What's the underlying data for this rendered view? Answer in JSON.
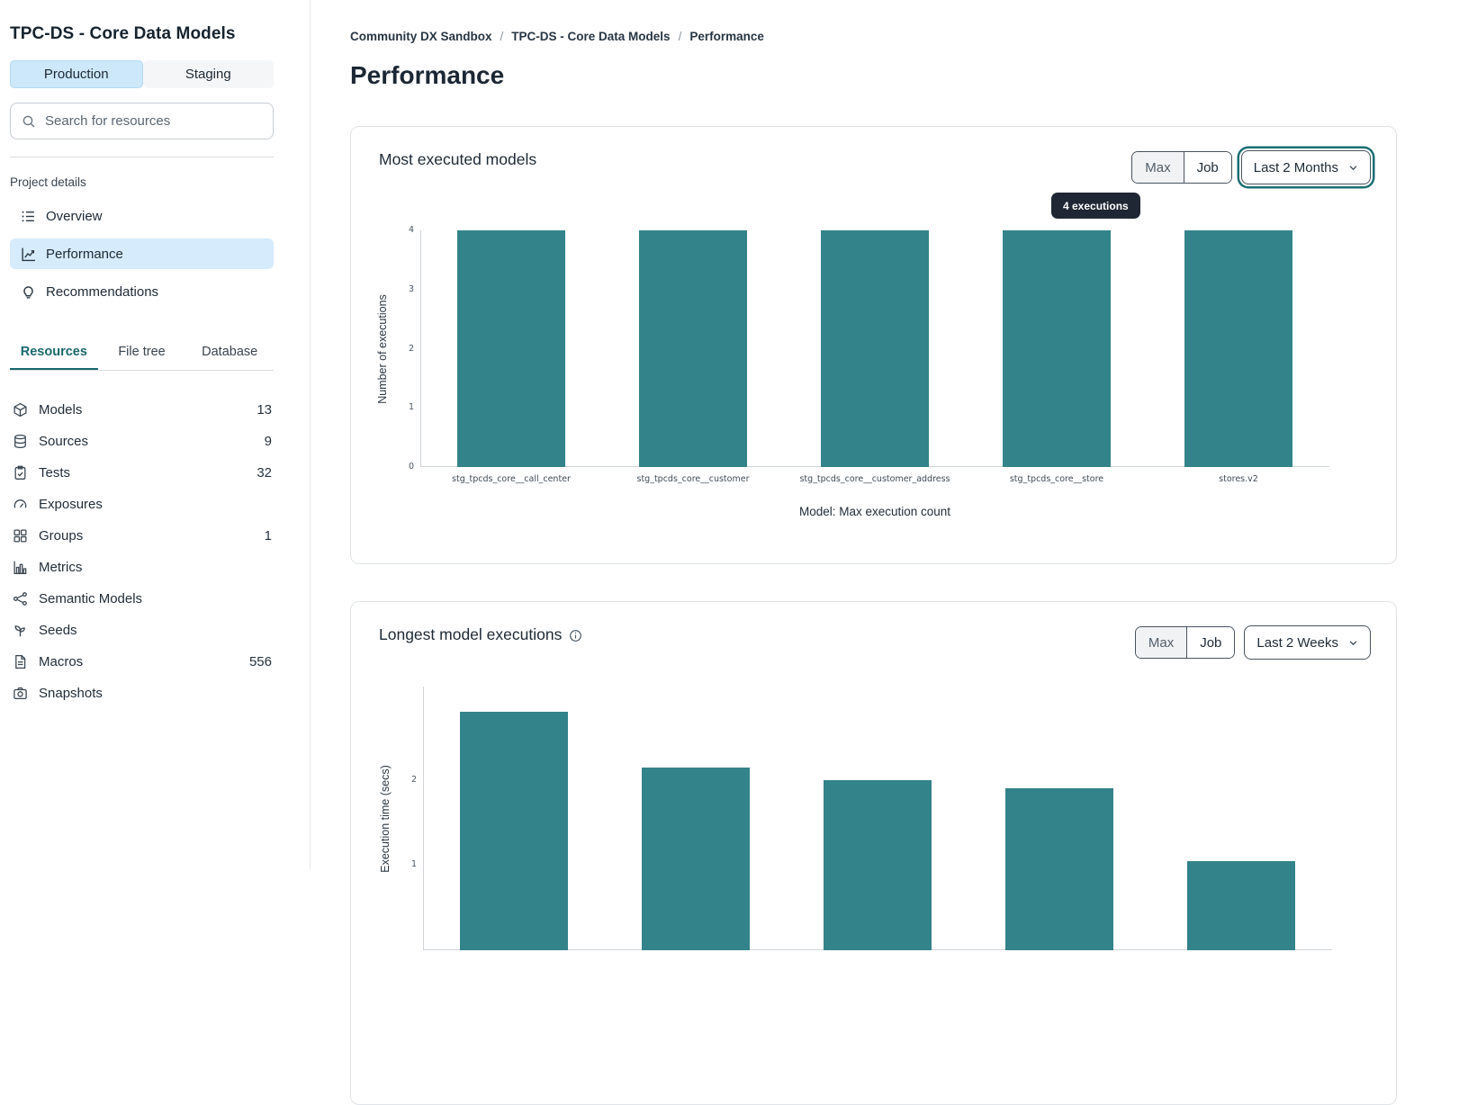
{
  "colors": {
    "bar_teal": "#33838a",
    "resource_tab_active_teal": "#19686c",
    "environment_tab_active_bg": "#cde8fa",
    "nav_active_bg": "#d6ebfc",
    "tooltip_bg": "#1e2733"
  },
  "sidebar": {
    "project_title": "TPC-DS - Core Data Models",
    "environment_tabs": [
      {
        "label": "Production",
        "active": true
      },
      {
        "label": "Staging",
        "active": false
      }
    ],
    "search": {
      "placeholder": "Search for resources",
      "icon": "search-icon"
    },
    "section_label": "Project details",
    "nav_items": [
      {
        "label": "Overview",
        "icon": "list-icon",
        "active": false
      },
      {
        "label": "Performance",
        "icon": "line-chart-icon",
        "active": true
      },
      {
        "label": "Recommendations",
        "icon": "lightbulb-icon",
        "active": false
      }
    ],
    "resource_tabs": [
      {
        "label": "Resources",
        "active": true
      },
      {
        "label": "File tree",
        "active": false
      },
      {
        "label": "Database",
        "active": false
      }
    ],
    "resources": [
      {
        "label": "Models",
        "count": "13",
        "icon": "cube-icon"
      },
      {
        "label": "Sources",
        "count": "9",
        "icon": "database-icon"
      },
      {
        "label": "Tests",
        "count": "32",
        "icon": "clipboard-check-icon"
      },
      {
        "label": "Exposures",
        "count": "",
        "icon": "gauge-icon"
      },
      {
        "label": "Groups",
        "count": "1",
        "icon": "grid-icon"
      },
      {
        "label": "Metrics",
        "count": "",
        "icon": "bar-chart-icon"
      },
      {
        "label": "Semantic Models",
        "count": "",
        "icon": "network-icon"
      },
      {
        "label": "Seeds",
        "count": "",
        "icon": "seedling-icon"
      },
      {
        "label": "Macros",
        "count": "556",
        "icon": "file-icon"
      },
      {
        "label": "Snapshots",
        "count": "",
        "icon": "camera-icon"
      }
    ]
  },
  "breadcrumb": {
    "items": [
      "Community DX Sandbox",
      "TPC-DS - Core Data Models",
      "Performance"
    ],
    "separator": "/"
  },
  "page_title": "Performance",
  "cards": [
    {
      "title": "Most executed models",
      "segmented": [
        "Max",
        "Job"
      ],
      "dropdown": {
        "label": "Last 2 Months",
        "focused": true
      },
      "tooltip": "4 executions"
    },
    {
      "title": "Longest model executions",
      "info_icon": "info-icon",
      "segmented": [
        "Max",
        "Job"
      ],
      "dropdown": {
        "label": "Last 2 Weeks",
        "focused": false
      }
    }
  ],
  "chart_data": [
    {
      "type": "bar",
      "title": "Most executed models",
      "categories": [
        "stg_tpcds_core__call_center",
        "stg_tpcds_core__customer",
        "stg_tpcds_core__customer_address",
        "stg_tpcds_core__store",
        "stores.v2"
      ],
      "values": [
        4,
        4,
        4,
        4,
        4
      ],
      "xlabel": "Model: Max execution count",
      "ylabel": "Number of executions",
      "ylim": [
        0,
        4
      ],
      "yticks": [
        0,
        1,
        2,
        3,
        4
      ],
      "grid": false,
      "legend": false,
      "bar_color": "#33838a"
    },
    {
      "type": "bar",
      "title": "Longest model executions",
      "categories": [
        "",
        "",
        "",
        "",
        ""
      ],
      "values": [
        2.8,
        2.15,
        2.0,
        1.9,
        1.05
      ],
      "xlabel": "",
      "ylabel": "Execution time (secs)",
      "ylim": [
        0,
        3.1
      ],
      "yticks": [
        1,
        2
      ],
      "grid": false,
      "legend": false,
      "bar_color": "#33838a"
    }
  ]
}
